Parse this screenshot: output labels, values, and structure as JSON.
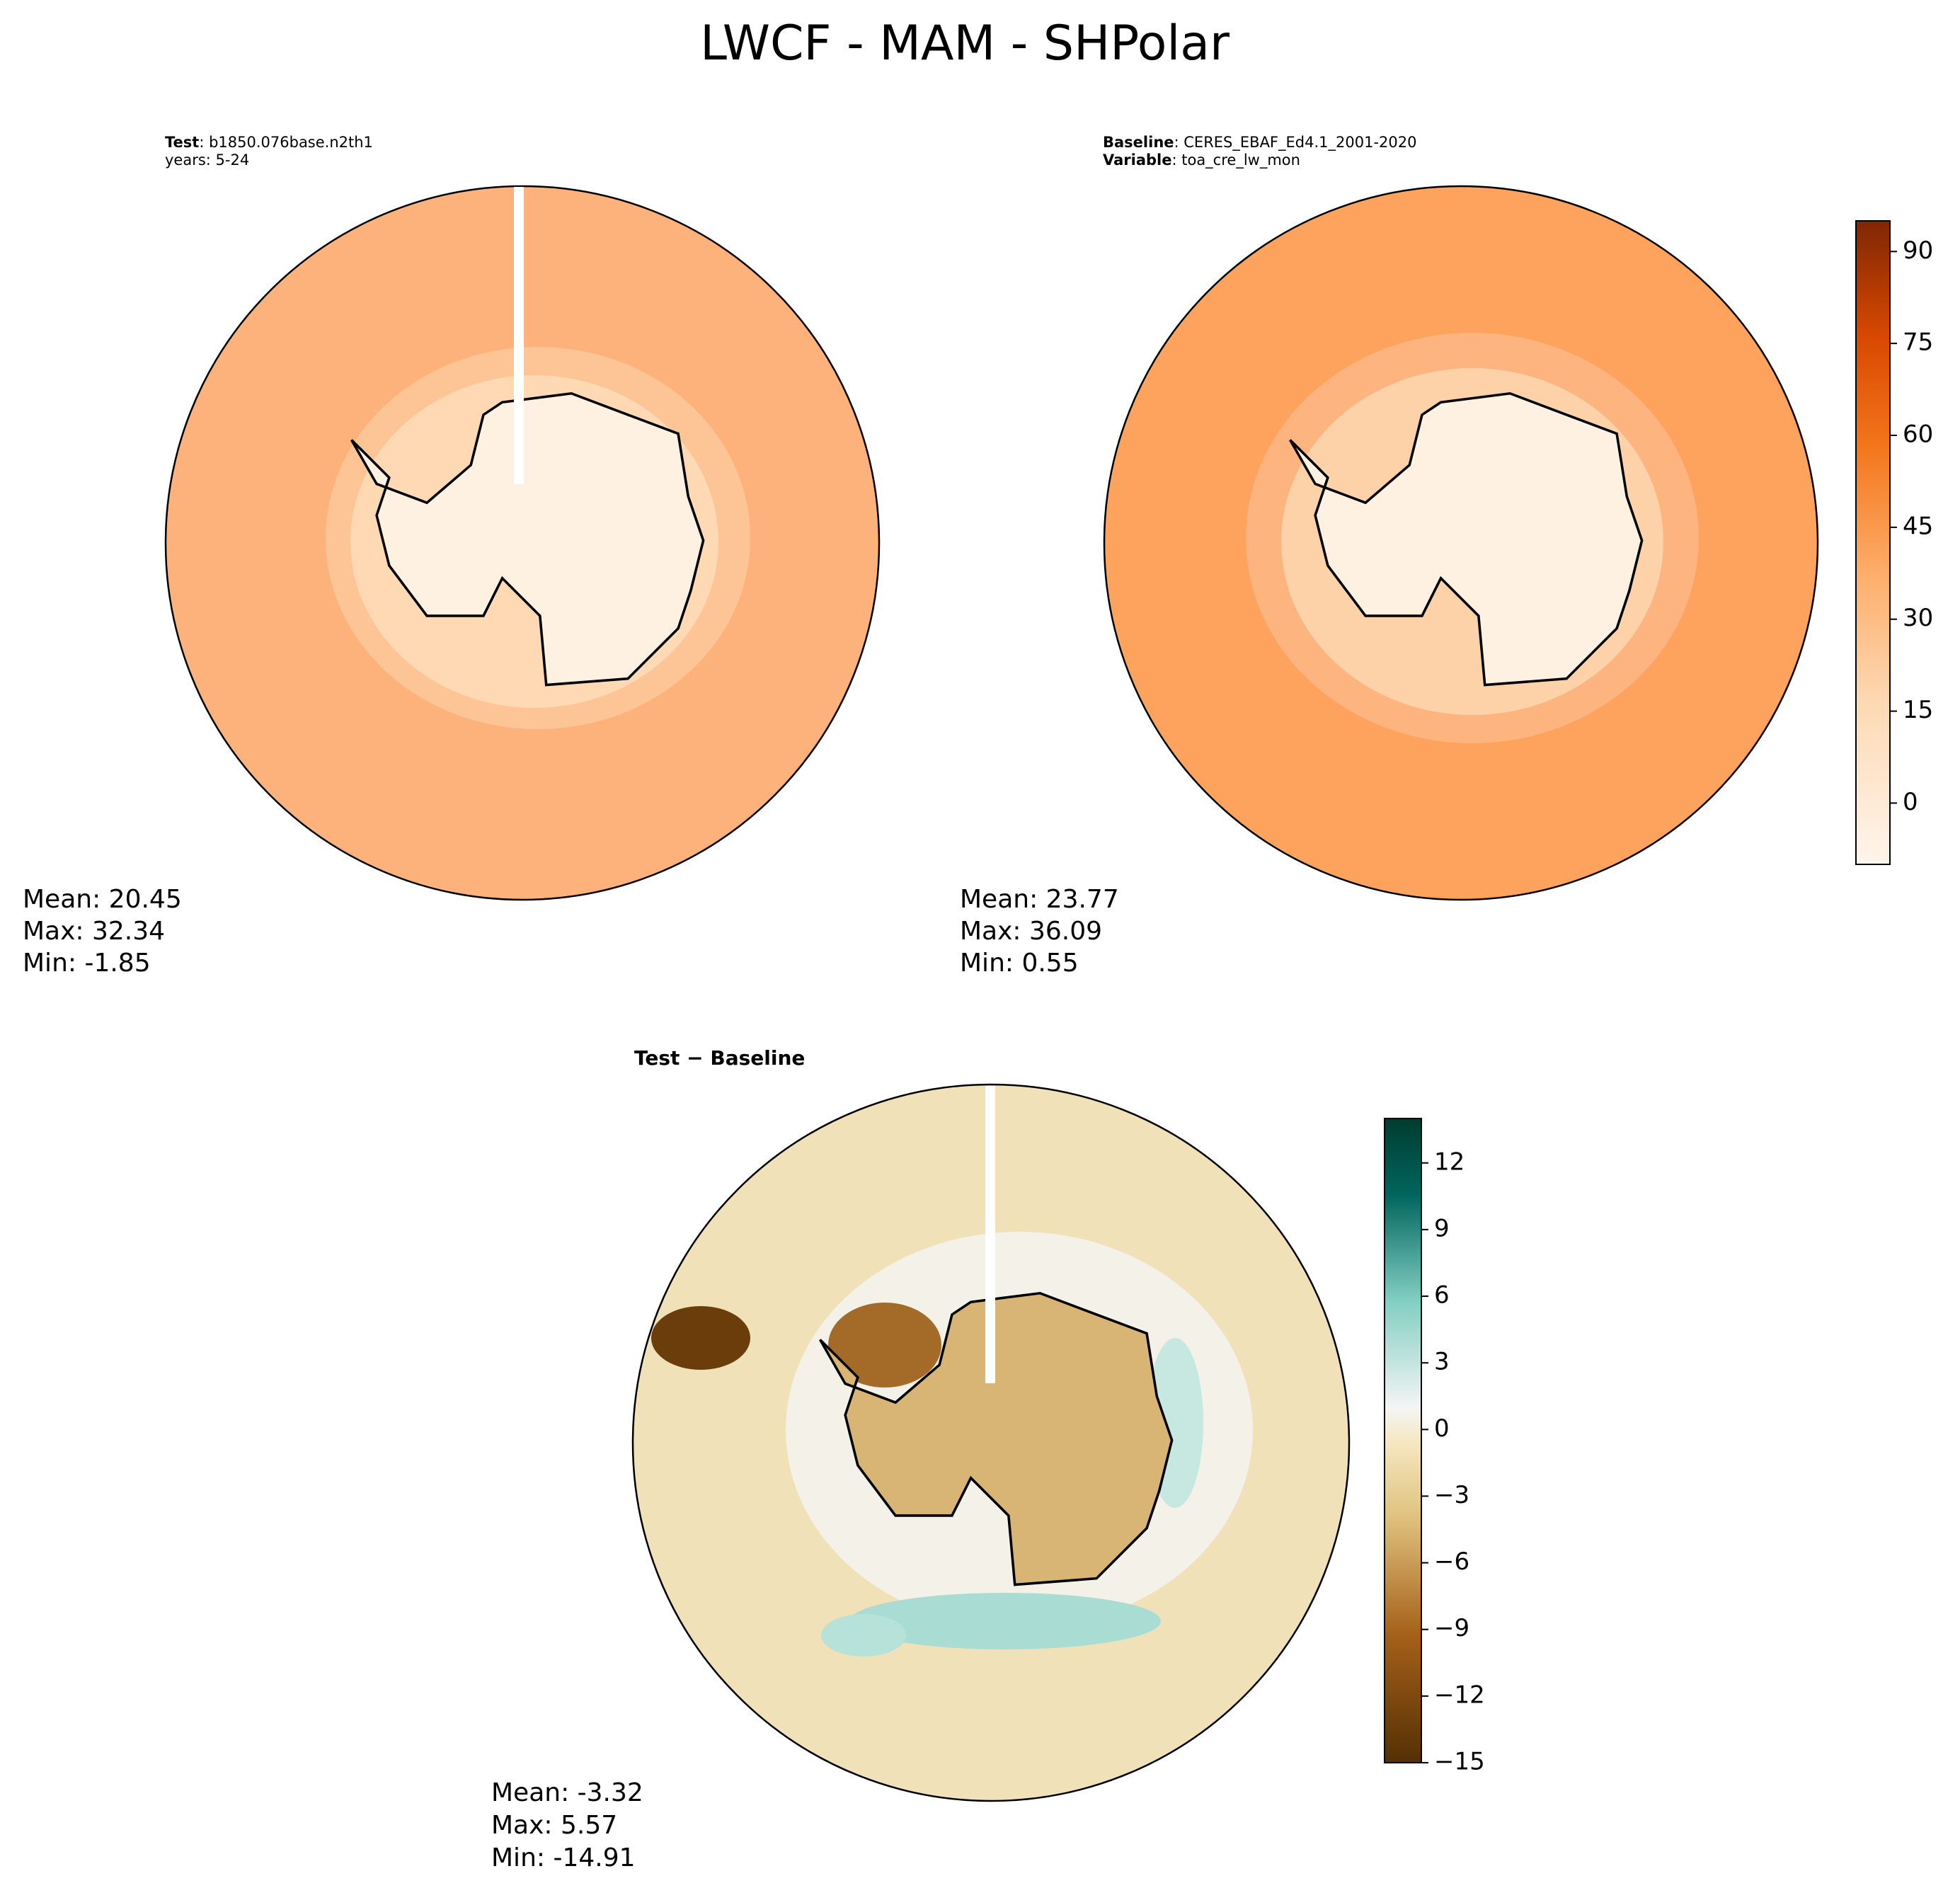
{
  "title": "LWCF - MAM - SHPolar",
  "panels": [
    {
      "header": [
        {
          "key": "Test",
          "value": ": b1850.076base.n2th1"
        },
        {
          "text": "years: 5-24"
        }
      ],
      "stats": [
        "Mean: 20.45",
        "Max: 32.34",
        "Min: -1.85"
      ]
    },
    {
      "header": [
        {
          "key": "Baseline",
          "value": ": CERES_EBAF_Ed4.1_2001-2020"
        },
        {
          "key": "Variable",
          "value": ": toa_cre_lw_mon"
        }
      ],
      "stats": [
        "Mean: 23.77",
        "Max: 36.09",
        "Min:  0.55"
      ]
    },
    {
      "header": [
        {
          "key": "Test − Baseline"
        }
      ],
      "stats": [
        "Mean: -3.32",
        "Max:  5.57",
        "Min: -14.91"
      ]
    }
  ],
  "colorbars": [
    {
      "lim": [
        -10,
        95
      ],
      "ticks": [
        0,
        15,
        30,
        45,
        60,
        75,
        90
      ]
    },
    {
      "lim": [
        -15,
        14
      ],
      "ticks": [
        {
          "value": -15,
          "label": "−15"
        },
        {
          "value": -12,
          "label": "−12"
        },
        {
          "value": -9,
          "label": "−9"
        },
        {
          "value": -6,
          "label": "−6"
        },
        {
          "value": -3,
          "label": "−3"
        },
        0,
        3,
        6,
        9,
        12
      ]
    }
  ]
}
